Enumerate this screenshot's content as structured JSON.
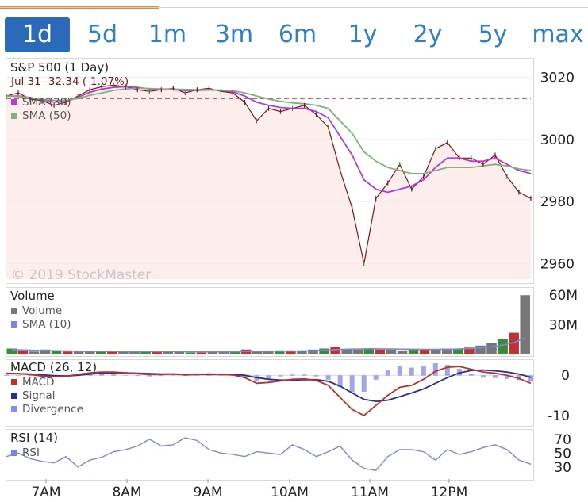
{
  "tabs": [
    {
      "label": "1d",
      "active": true
    },
    {
      "label": "5d"
    },
    {
      "label": "1m"
    },
    {
      "label": "3m"
    },
    {
      "label": "6m"
    },
    {
      "label": "1y"
    },
    {
      "label": "2y"
    },
    {
      "label": "5y"
    },
    {
      "label": "max"
    }
  ],
  "colors": {
    "accent": "#2b6ab9",
    "tab_text": "#2f7fc7",
    "price": "#7a1515",
    "sma30": "#b23dcf",
    "sma50": "#7fb27f",
    "volume": "#777777",
    "vol_sma": "#7d86d8",
    "macd": "#b8322c",
    "signal": "#2c2f8a",
    "divergence": "#8a90e0",
    "rsi": "#7d86d8"
  },
  "watermark": "© 2019 StockMaster",
  "chart_data": [
    {
      "type": "line",
      "title": "S&P 500 (1 Day)",
      "annotation": "Jul 31  -32.34  (-1.07%)",
      "previous_close": 3013.2,
      "ylim": [
        2955,
        3025
      ],
      "yticks": [
        3020,
        3000,
        2980,
        2960
      ],
      "x_ticks": [
        "7AM",
        "8AM",
        "9AM",
        "10AM",
        "11AM",
        "12PM"
      ],
      "series": [
        {
          "name": "",
          "values": [
            3014,
            3015,
            3013,
            3012.5,
            3011,
            3012,
            3014,
            3016,
            3017,
            3017.5,
            3017,
            3016,
            3015.5,
            3016,
            3016.5,
            3015,
            3016,
            3016.5,
            3015.5,
            3015,
            3012,
            3006,
            3010,
            3009,
            3010,
            3011,
            3008,
            3004,
            2990,
            2978,
            2960,
            2981,
            2986,
            2992,
            2984,
            2988,
            2997,
            2999,
            2994,
            2994,
            2992,
            2995,
            2988,
            2983,
            2981
          ]
        },
        {
          "name": "SMA (30)",
          "values": [
            3014,
            3014,
            3013.5,
            3012.8,
            3012,
            3012.2,
            3013.6,
            3015.2,
            3016.2,
            3016.8,
            3017,
            3016.8,
            3016.3,
            3016.1,
            3016,
            3015.8,
            3015.8,
            3016,
            3015.8,
            3015.4,
            3014,
            3012,
            3011,
            3010.3,
            3010,
            3010,
            3009,
            3007,
            3001,
            2995,
            2987,
            2984,
            2983,
            2984,
            2985,
            2987,
            2991,
            2994,
            2994,
            2993,
            2993,
            2994,
            2992,
            2990,
            2989
          ]
        },
        {
          "name": "SMA (50)",
          "values": [
            3014,
            3013.8,
            3013.4,
            3013,
            3012.6,
            3012.6,
            3013.2,
            3014.2,
            3015,
            3015.8,
            3016.3,
            3016.5,
            3016.4,
            3016.3,
            3016.2,
            3016.1,
            3016,
            3016,
            3015.9,
            3015.7,
            3015,
            3014,
            3013,
            3012.3,
            3011.8,
            3011.5,
            3011,
            3010,
            3006,
            3002,
            2996,
            2993,
            2991,
            2990,
            2989,
            2989,
            2990,
            2991,
            2991,
            2991,
            2991.5,
            2992,
            2991.5,
            2990.5,
            2990
          ]
        }
      ]
    },
    {
      "type": "bar",
      "title": "Volume",
      "ylim": [
        0,
        65
      ],
      "yticks": [
        {
          "v": 60,
          "label": "60M"
        },
        {
          "v": 30,
          "label": "30M"
        }
      ],
      "values": [
        6,
        4,
        3,
        5,
        4,
        3,
        3,
        4,
        3,
        3,
        3,
        3,
        3,
        3,
        3,
        3,
        2,
        2,
        3,
        2,
        3,
        5,
        3,
        4,
        3,
        3,
        4,
        5,
        6,
        8,
        5,
        5,
        6,
        5,
        5,
        4,
        5,
        5,
        5,
        6,
        6,
        7,
        9,
        12,
        16,
        22,
        60
      ],
      "series": [
        {
          "name": "SMA (10)",
          "values": [
            5,
            4.6,
            4.2,
            4,
            3.8,
            3.6,
            3.4,
            3.3,
            3.2,
            3.1,
            3,
            3,
            3,
            3,
            3,
            2.9,
            2.8,
            2.7,
            2.7,
            2.6,
            2.7,
            3,
            3.2,
            3.4,
            3.5,
            3.5,
            3.6,
            3.9,
            4.3,
            5,
            5.4,
            5.6,
            5.8,
            5.7,
            5.6,
            5.4,
            5.3,
            5.2,
            5.2,
            5.3,
            5.5,
            5.9,
            6.6,
            7.8,
            9.5,
            12,
            17
          ]
        }
      ],
      "legend": [
        "Volume",
        "SMA (10)"
      ]
    },
    {
      "type": "line",
      "title": "MACD (26, 12)",
      "ylim": [
        -12,
        3
      ],
      "yticks": [
        {
          "v": 0,
          "label": "0"
        },
        {
          "v": -10,
          "label": "-10"
        }
      ],
      "series": [
        {
          "name": "MACD",
          "values": [
            0.5,
            0.4,
            0.2,
            -0.2,
            -0.4,
            -0.3,
            0.2,
            0.6,
            0.8,
            0.8,
            0.6,
            0.4,
            0.2,
            0.2,
            0.3,
            0.1,
            0.2,
            0.3,
            0.2,
            0.1,
            -0.6,
            -2,
            -1.8,
            -1.4,
            -1,
            -0.9,
            -1.3,
            -2.5,
            -5.5,
            -8.5,
            -10,
            -7.5,
            -5,
            -3,
            -2.5,
            -1,
            1,
            2,
            2.2,
            1.5,
            0.8,
            0.5,
            0,
            -0.8,
            -2
          ]
        },
        {
          "name": "Signal",
          "values": [
            0.4,
            0.4,
            0.3,
            0.1,
            -0.1,
            -0.2,
            0,
            0.3,
            0.5,
            0.6,
            0.6,
            0.5,
            0.4,
            0.3,
            0.3,
            0.2,
            0.2,
            0.2,
            0.2,
            0.2,
            0,
            -0.6,
            -1,
            -1.2,
            -1.2,
            -1.1,
            -1.1,
            -1.5,
            -2.7,
            -4.4,
            -6,
            -6.5,
            -6.2,
            -5.3,
            -4.4,
            -3.4,
            -2,
            -0.6,
            0.6,
            1.2,
            1.3,
            1.1,
            0.8,
            0.3,
            -0.5
          ]
        }
      ],
      "legend": [
        "MACD",
        "Signal",
        "Divergence"
      ]
    },
    {
      "type": "line",
      "title": "RSI (14)",
      "ylim": [
        15,
        80
      ],
      "yticks": [
        {
          "v": 70,
          "label": "70"
        },
        {
          "v": 50,
          "label": "50"
        },
        {
          "v": 30,
          "label": "30"
        }
      ],
      "series": [
        {
          "name": "RSI",
          "values": [
            45,
            50,
            42,
            38,
            36,
            45,
            30,
            40,
            44,
            52,
            55,
            60,
            70,
            60,
            62,
            72,
            68,
            55,
            50,
            48,
            45,
            52,
            50,
            48,
            62,
            55,
            45,
            52,
            60,
            40,
            28,
            25,
            45,
            55,
            55,
            52,
            40,
            55,
            48,
            52,
            58,
            62,
            55,
            40,
            34
          ]
        }
      ],
      "legend": [
        "RSI"
      ]
    }
  ]
}
